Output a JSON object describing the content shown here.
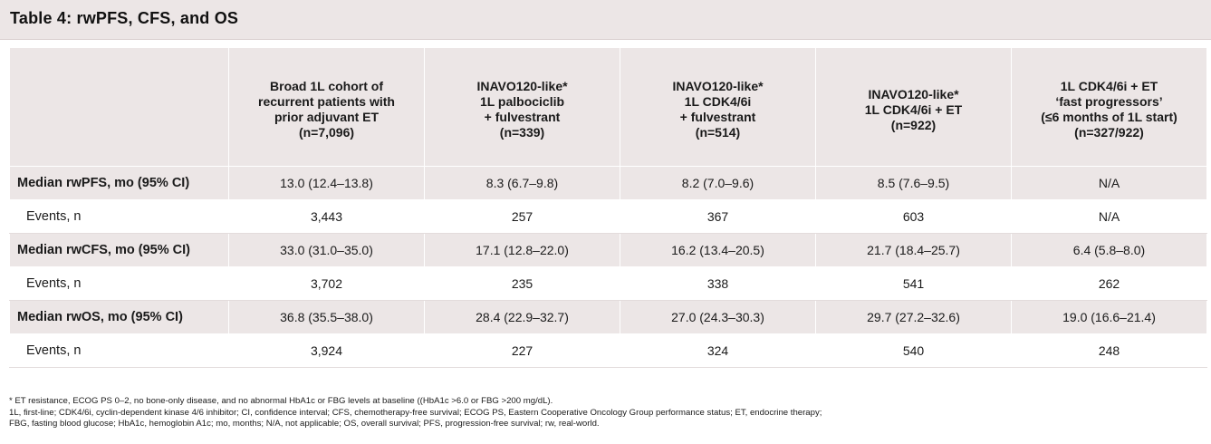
{
  "title": "Table 4: rwPFS, CFS, and OS",
  "columns": [
    {
      "lines": [
        "Broad 1L cohort of",
        "recurrent patients with",
        "prior adjuvant ET",
        "(n=7,096)"
      ]
    },
    {
      "lines": [
        "INAVO120-like*",
        "1L palbociclib",
        "+ fulvestrant",
        "(n=339)"
      ]
    },
    {
      "lines": [
        "INAVO120-like*",
        "1L CDK4/6i",
        "+ fulvestrant",
        "(n=514)"
      ]
    },
    {
      "lines": [
        "INAVO120-like*",
        "1L CDK4/6i + ET",
        "(n=922)"
      ]
    },
    {
      "lines": [
        "1L CDK4/6i + ET",
        "‘fast progressors’",
        "(≤6 months of 1L start)",
        "(n=327/922)"
      ]
    }
  ],
  "rows": [
    {
      "label": "Median rwPFS, mo (95% CI)",
      "cells": [
        "13.0 (12.4–13.8)",
        "8.3 (6.7–9.8)",
        "8.2 (7.0–9.6)",
        "8.5 (7.6–9.5)",
        "N/A"
      ]
    },
    {
      "label": "Events, n",
      "cells": [
        "3,443",
        "257",
        "367",
        "603",
        "N/A"
      ]
    },
    {
      "label": "Median rwCFS, mo (95% CI)",
      "cells": [
        "33.0 (31.0–35.0)",
        "17.1 (12.8–22.0)",
        "16.2 (13.4–20.5)",
        "21.7 (18.4–25.7)",
        "6.4 (5.8–8.0)"
      ]
    },
    {
      "label": "Events, n",
      "cells": [
        "3,702",
        "235",
        "338",
        "541",
        "262"
      ]
    },
    {
      "label": "Median rwOS, mo (95% CI)",
      "cells": [
        "36.8 (35.5–38.0)",
        "28.4 (22.9–32.7)",
        "27.0 (24.3–30.3)",
        "29.7 (27.2–32.6)",
        "19.0 (16.6–21.4)"
      ]
    },
    {
      "label": "Events, n",
      "cells": [
        "3,924",
        "227",
        "324",
        "540",
        "248"
      ]
    }
  ],
  "footnotes": [
    "* ET resistance, ECOG PS 0–2, no bone-only disease, and no abnormal HbA1c or FBG levels at baseline ((HbA1c >6.0 or FBG >200 mg/dL).",
    "1L, first-line; CDK4/6i, cyclin-dependent kinase 4/6 inhibitor; CI, confidence interval; CFS, chemotherapy-free survival; ECOG PS, Eastern Cooperative Oncology Group performance status; ET, endocrine therapy;",
    "FBG, fasting blood glucose; HbA1c, hemoglobin A1c; mo, months; N/A, not applicable; OS, overall survival; PFS, progression-free survival; rw, real-world."
  ],
  "colors": {
    "header_bg": "#ece6e6",
    "text": "#1a1a1a"
  }
}
